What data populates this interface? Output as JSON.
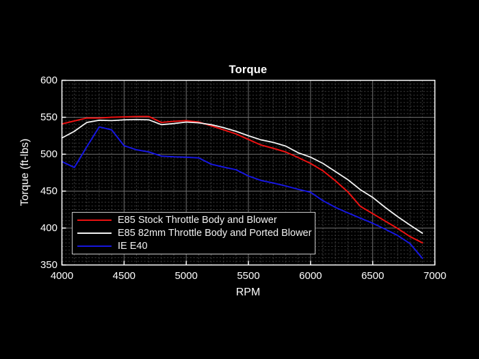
{
  "figure": {
    "background_color": "#000000",
    "axis_color": "#ffffff",
    "major_grid_color": "#707070",
    "minor_grid_color": "#3d3d3d",
    "legend_border_color": "#cccccc"
  },
  "chart_data": {
    "type": "line",
    "title": "Torque",
    "xlabel": "RPM",
    "ylabel": "Torque (ft-lbs)",
    "xlim": [
      4000,
      7000
    ],
    "ylim": [
      350,
      600
    ],
    "x_ticks": [
      4000,
      4500,
      5000,
      5500,
      6000,
      6500,
      7000
    ],
    "y_ticks": [
      350,
      400,
      450,
      500,
      550,
      600
    ],
    "grid": "major solid, minor dashed (100 RPM / 5 ft-lb)",
    "legend_position": "bottom-left inside plot",
    "x": [
      4000,
      4100,
      4200,
      4300,
      4400,
      4500,
      4600,
      4700,
      4800,
      4900,
      5000,
      5100,
      5200,
      5300,
      5400,
      5500,
      5600,
      5700,
      5800,
      5900,
      6000,
      6100,
      6200,
      6300,
      6400,
      6500,
      6600,
      6700,
      6800,
      6900
    ],
    "series": [
      {
        "id": "e85-stock",
        "name": "E85 Stock Throttle Body and Blower",
        "color": "#ee1111",
        "width": 2,
        "values": [
          541,
          545,
          549,
          549,
          550,
          550.5,
          551,
          551,
          543,
          544.5,
          545.5,
          543.5,
          538.5,
          533,
          527.5,
          520,
          512.5,
          508,
          503,
          495.5,
          487.5,
          477.5,
          464,
          449,
          429.5,
          419.5,
          409.5,
          399.5,
          388.5,
          380
        ]
      },
      {
        "id": "e85-82mm",
        "name": "E85 82mm Throttle Body and Ported Blower",
        "color": "#f5f5f5",
        "width": 1.8,
        "values": [
          522,
          531,
          543,
          546,
          545.5,
          546.5,
          547,
          546.5,
          540,
          541.5,
          543.5,
          542.5,
          540,
          536,
          531,
          525,
          519.5,
          516,
          511,
          502,
          496,
          487.5,
          476.5,
          465.5,
          452,
          441.5,
          428,
          415.5,
          404,
          393
        ]
      },
      {
        "id": "ie-e40",
        "name": "IE E40",
        "color": "#1616e0",
        "width": 2,
        "values": [
          490,
          482,
          510,
          537,
          533,
          511.5,
          506,
          503,
          497.5,
          496.5,
          496,
          495,
          486.5,
          482.5,
          479,
          470.5,
          464.5,
          461,
          457,
          452.5,
          448.5,
          437,
          428,
          420.5,
          413.5,
          406.5,
          398.5,
          390,
          379,
          359
        ]
      }
    ]
  }
}
